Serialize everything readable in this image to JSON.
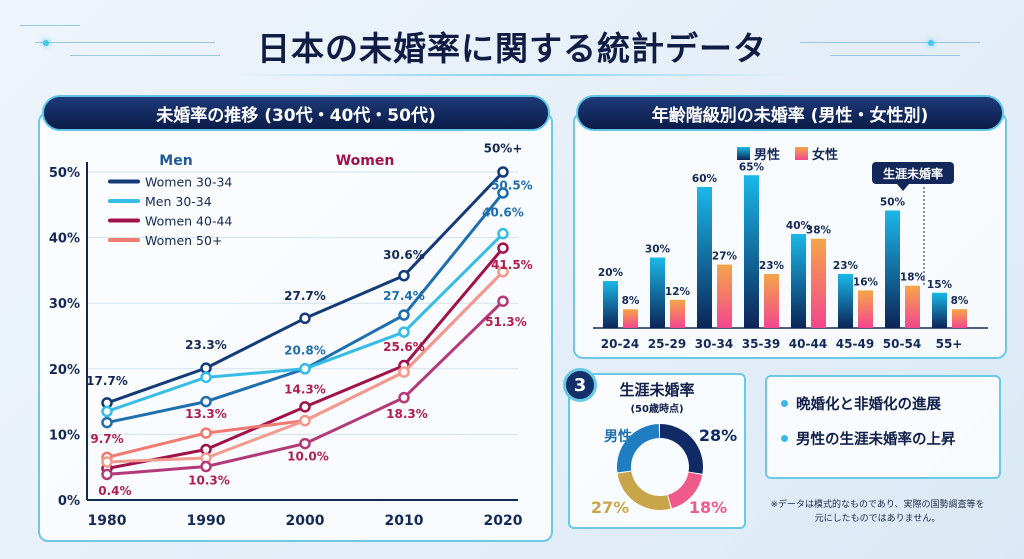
{
  "title": "日本の未婚率に関する統計データ",
  "colors": {
    "navy": "#0f2a5c",
    "accent": "#5fc6e6",
    "men": "#1a86c8",
    "women": "#f08a4b"
  },
  "chart_data": [
    {
      "type": "line",
      "panel_title": "未婚率の推移 (30代・40代・50代)",
      "group_labels": [
        "Men",
        "Women"
      ],
      "x": [
        1980,
        1990,
        2000,
        2010,
        2020
      ],
      "ylim": [
        0,
        50
      ],
      "yticks": [
        "0%",
        "10%",
        "20%",
        "30%",
        "40%",
        "50%"
      ],
      "grid": true,
      "legend_placement": "top-left",
      "series": [
        {
          "name": "Women 30-34",
          "color": "#143a78",
          "values": [
            14.8,
            20.1,
            27.7,
            34.2,
            50.0
          ]
        },
        {
          "color": "#1f6fae",
          "values": [
            11.8,
            15.0,
            20.0,
            28.2,
            46.8
          ]
        },
        {
          "name": "Men 30-34",
          "color": "#36bde6",
          "values": [
            13.5,
            18.7,
            20.0,
            25.6,
            40.6
          ]
        },
        {
          "name": "Women 40-44",
          "color": "#a0124a",
          "values": [
            4.8,
            7.7,
            14.2,
            20.5,
            38.4
          ]
        },
        {
          "name": "Women 50+",
          "color": "#f07a70",
          "values": [
            6.5,
            10.2,
            12.1,
            19.5,
            34.8
          ]
        },
        {
          "color": "#f29a8e",
          "values": [
            5.8,
            6.4,
            12.1,
            19.5,
            34.8
          ]
        },
        {
          "color": "#b23a78",
          "values": [
            3.9,
            5.1,
            8.6,
            15.6,
            30.3
          ]
        }
      ],
      "annotations": [
        {
          "text": "17.7%",
          "x": 1980,
          "y": 17.5,
          "color": "#142a55"
        },
        {
          "text": "23.3%",
          "x": 1990,
          "y": 23.0,
          "color": "#142a55"
        },
        {
          "text": "27.7%",
          "x": 2000,
          "y": 30.5,
          "color": "#142a55"
        },
        {
          "text": "30.6%",
          "x": 2010,
          "y": 36.7,
          "color": "#142a55"
        },
        {
          "text": "50%+",
          "x": 2020,
          "y": 53.0,
          "color": "#142a55"
        },
        {
          "text": "20.8%",
          "x": 2000,
          "y": 22.2,
          "color": "#1f6fae"
        },
        {
          "text": "27.4%",
          "x": 2010,
          "y": 30.5,
          "color": "#1f6fae"
        },
        {
          "text": "50.5%",
          "x": 2020.9,
          "y": 47.3,
          "color": "#1f6fae"
        },
        {
          "text": "40.6%",
          "x": 2020,
          "y": 43.2,
          "color": "#1f6fae"
        },
        {
          "text": "9.7%",
          "x": 1980,
          "y": 8.7,
          "color": "#b0204f"
        },
        {
          "text": "13.3%",
          "x": 1990,
          "y": 12.5,
          "color": "#b0204f"
        },
        {
          "text": "14.3%",
          "x": 2000,
          "y": 16.2,
          "color": "#b0204f"
        },
        {
          "text": "25.6%",
          "x": 2010,
          "y": 22.7,
          "color": "#b0204f"
        },
        {
          "text": "41.5%",
          "x": 2020.9,
          "y": 35.2,
          "color": "#b0204f"
        },
        {
          "text": "51.3%",
          "x": 2020.3,
          "y": 26.5,
          "color": "#b0204f"
        },
        {
          "text": "0.4%",
          "x": 1980.8,
          "y": 0.8,
          "color": "#b0204f"
        },
        {
          "text": "10.3%",
          "x": 1990.3,
          "y": 2.4,
          "color": "#b0204f"
        },
        {
          "text": "10.0%",
          "x": 2000.3,
          "y": 6.0,
          "color": "#b0204f"
        },
        {
          "text": "18.3%",
          "x": 2010.3,
          "y": 12.5,
          "color": "#b0204f"
        }
      ]
    },
    {
      "type": "bar",
      "panel_title": "年齢階級別の未婚率 (男性・女性別)",
      "categories": [
        "20-24",
        "25-29",
        "30-34",
        "35-39",
        "40-44",
        "45-49",
        "50-54",
        "55+"
      ],
      "series": [
        {
          "name": "男性",
          "values": [
            20,
            30,
            60,
            65,
            40,
            23,
            50,
            15
          ]
        },
        {
          "name": "女性",
          "values": [
            8,
            12,
            27,
            23,
            38,
            16,
            18,
            8
          ]
        }
      ],
      "value_labels": [
        [
          "20%",
          "30%",
          "60%",
          "65%",
          "40%",
          "23%",
          "50%",
          "15%"
        ],
        [
          "8%",
          "12%",
          "27%",
          "23%",
          "38%",
          "16%",
          "18%",
          "8%"
        ]
      ],
      "callout": {
        "text": "生涯未婚率",
        "category": "50-54"
      },
      "legend_placement": "top"
    },
    {
      "type": "pie",
      "badge": "3",
      "title": "生涯未婚率",
      "subtitle": "(50歳時点)",
      "label": "男性",
      "slices": [
        {
          "value": 28,
          "label": "28%",
          "color": "#0f2a64"
        },
        {
          "value": 18,
          "label": "18%",
          "color": "#f05a8a"
        },
        {
          "value": 27,
          "label": "27%",
          "color": "#c9a54a"
        },
        {
          "value": 27,
          "color": "#1f7ec2"
        }
      ]
    }
  ],
  "summary": {
    "bullets": [
      "晩婚化と非婚化の進展",
      "男性の生涯未婚率の上昇"
    ],
    "note": "※データは模式的なものであり、実際の国勢調査等を元にしたものではありません。"
  }
}
